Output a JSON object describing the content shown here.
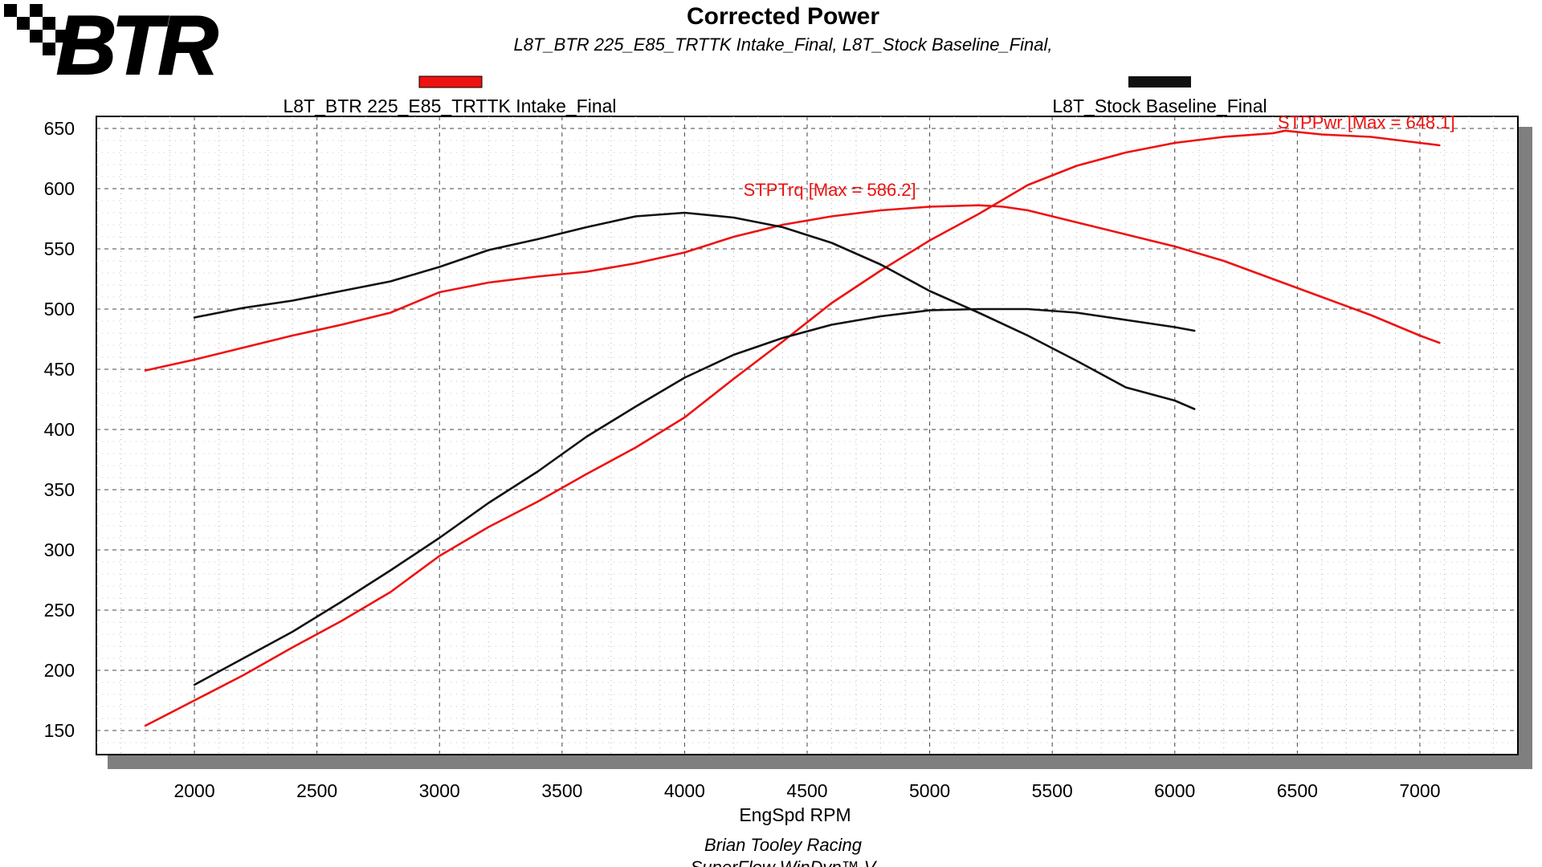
{
  "logo": {
    "text": "BTR"
  },
  "chart_data": {
    "type": "line",
    "title": "Corrected Power",
    "subtitle": "L8T_BTR 225_E85_TRTTK Intake_Final, L8T_Stock Baseline_Final,",
    "xlabel": "EngSpd RPM",
    "ylabel": "",
    "xlim": [
      1600,
      7400
    ],
    "ylim": [
      130,
      660
    ],
    "x_ticks": [
      2000,
      2500,
      3000,
      3500,
      4000,
      4500,
      5000,
      5500,
      6000,
      6500,
      7000
    ],
    "y_ticks": [
      150,
      200,
      250,
      300,
      350,
      400,
      450,
      500,
      550,
      600,
      650
    ],
    "grid": true,
    "legend_position": "top",
    "legend": [
      {
        "name": "L8T_BTR 225_E85_TRTTK Intake_Final",
        "color": "#ee1111"
      },
      {
        "name": "L8T_Stock Baseline_Final",
        "color": "#111111"
      }
    ],
    "series": [
      {
        "name": "L8T_BTR 225_E85_TRTTK Intake_Final STPTrq",
        "color": "#ee1111",
        "x": [
          1800,
          2000,
          2200,
          2400,
          2600,
          2800,
          3000,
          3200,
          3400,
          3600,
          3800,
          4000,
          4200,
          4400,
          4600,
          4800,
          5000,
          5200,
          5300,
          5400,
          5600,
          5800,
          6000,
          6200,
          6400,
          6600,
          6800,
          7000,
          7080
        ],
        "y": [
          449,
          458,
          468,
          478,
          487,
          497,
          514,
          522,
          527,
          531,
          538,
          547,
          560,
          570,
          577,
          582,
          585,
          586.2,
          585,
          582,
          572,
          562,
          552,
          540,
          525,
          510,
          495,
          478,
          472
        ]
      },
      {
        "name": "L8T_BTR 225_E85_TRTTK Intake_Final STPPwr",
        "color": "#ee1111",
        "x": [
          1800,
          2000,
          2200,
          2400,
          2600,
          2800,
          3000,
          3200,
          3400,
          3600,
          3800,
          4000,
          4200,
          4400,
          4600,
          4800,
          5000,
          5200,
          5400,
          5600,
          5800,
          6000,
          6200,
          6400,
          6450,
          6600,
          6800,
          7000,
          7080
        ],
        "y": [
          154,
          175,
          196,
          219,
          241,
          265,
          295,
          319,
          340,
          363,
          385,
          410,
          442,
          473,
          505,
          532,
          557,
          579,
          603,
          619,
          630,
          638,
          643,
          646,
          648.1,
          645,
          643,
          638,
          636
        ]
      },
      {
        "name": "L8T_Stock Baseline_Final STPTrq",
        "color": "#111111",
        "x": [
          2000,
          2200,
          2400,
          2600,
          2800,
          3000,
          3200,
          3400,
          3600,
          3800,
          4000,
          4200,
          4400,
          4600,
          4800,
          5000,
          5200,
          5400,
          5600,
          5800,
          6000,
          6080
        ],
        "y": [
          493,
          501,
          507,
          515,
          523,
          535,
          549,
          558,
          568,
          577,
          580,
          576,
          568,
          555,
          537,
          515,
          497,
          478,
          457,
          435,
          424,
          417
        ]
      },
      {
        "name": "L8T_Stock Baseline_Final STPPwr",
        "color": "#111111",
        "x": [
          2000,
          2200,
          2400,
          2600,
          2800,
          3000,
          3200,
          3400,
          3600,
          3800,
          4000,
          4200,
          4400,
          4600,
          4800,
          5000,
          5200,
          5400,
          5600,
          5800,
          6000,
          6080
        ],
        "y": [
          188,
          210,
          232,
          257,
          283,
          310,
          339,
          365,
          394,
          419,
          443,
          462,
          476,
          487,
          494,
          499,
          500,
          500,
          497,
          491,
          485,
          482
        ]
      }
    ],
    "annotations": [
      {
        "text": "STPPwr [Max = 648.1]",
        "x": 6420,
        "y": 650,
        "color": "#ee1111"
      },
      {
        "text": "STPTrq [Max = 586.2]",
        "x": 4240,
        "y": 594,
        "color": "#ee1111"
      }
    ],
    "footer": [
      "Brian Tooley Racing",
      "SuperFlow WinDyn™ V"
    ]
  }
}
